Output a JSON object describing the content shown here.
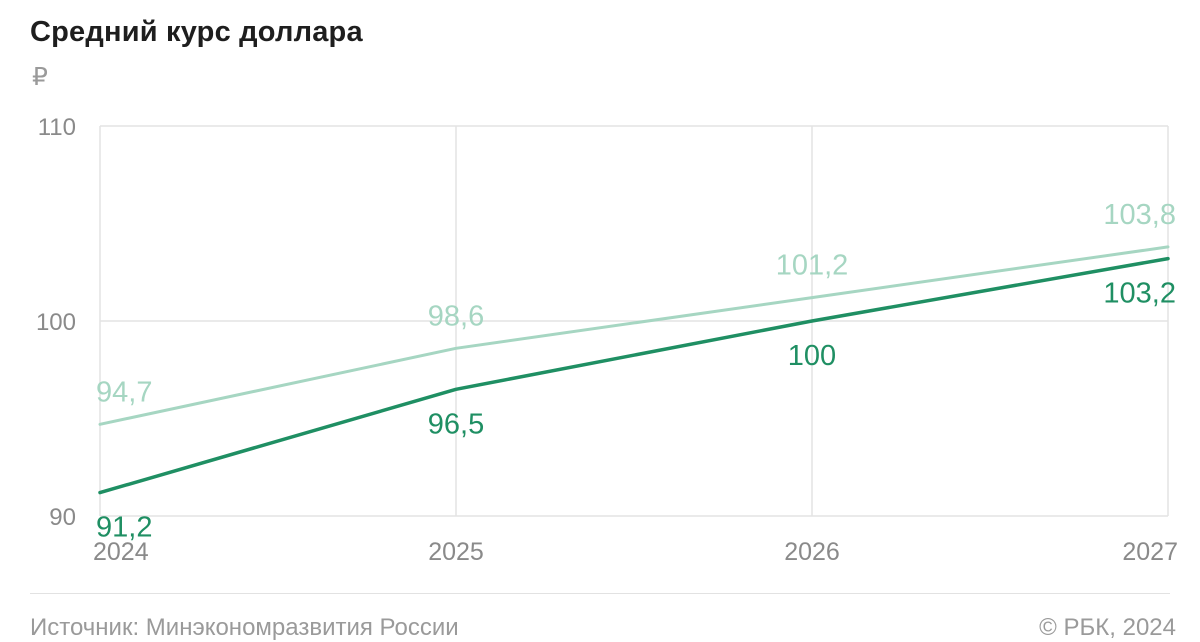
{
  "chart_data": {
    "type": "line",
    "title": "Средний курс доллара",
    "unit": "₽",
    "x": [
      "2024",
      "2025",
      "2026",
      "2027"
    ],
    "yticks": [
      "110",
      "100",
      "90"
    ],
    "ylim": [
      90,
      110
    ],
    "series": [
      {
        "values": [
          94.7,
          98.6,
          101.2,
          103.8
        ],
        "labels": [
          "94,7",
          "98,6",
          "101,2",
          "103,8"
        ],
        "color": "#a6d6c2"
      },
      {
        "values": [
          91.2,
          96.5,
          100,
          103.2
        ],
        "labels": [
          "91,2",
          "96,5",
          "100",
          "103,2"
        ],
        "color": "#1f8f63"
      }
    ],
    "grid": true
  },
  "footer": {
    "source": "Источник: Минэкономразвития России",
    "copyright": "© РБК, 2024"
  }
}
